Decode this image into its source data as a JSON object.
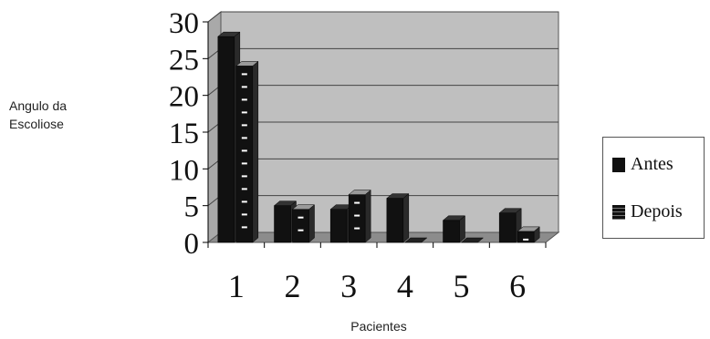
{
  "chart_data": {
    "type": "bar",
    "title": "",
    "xlabel": "Pacientes",
    "ylabel_lines": [
      "Angulo da",
      "Escoliose"
    ],
    "categories": [
      "1",
      "2",
      "3",
      "4",
      "5",
      "6"
    ],
    "series": [
      {
        "name": "Antes",
        "values": [
          28,
          5,
          4.5,
          6,
          3,
          4
        ]
      },
      {
        "name": "Depois",
        "values": [
          24,
          4.5,
          6.5,
          0,
          0,
          1.5
        ]
      }
    ],
    "ylim": [
      0,
      30
    ],
    "yticks": [
      "0",
      "5",
      "10",
      "15",
      "20",
      "25",
      "30"
    ],
    "grid": true,
    "legend_position": "right",
    "colors": {
      "plot_bg": "#bfbfbf",
      "bar": "#111111",
      "floor": "#8c8c8c"
    }
  }
}
